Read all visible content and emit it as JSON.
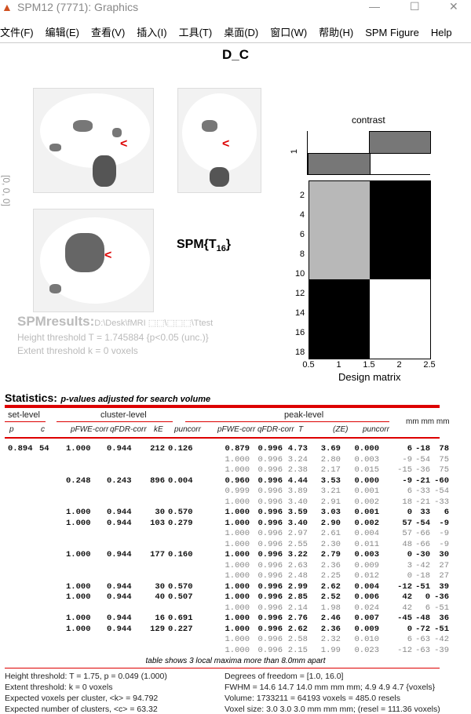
{
  "window": {
    "title": "SPM12 (7771): Graphics",
    "min": "—",
    "max": "☐",
    "close": "✕"
  },
  "menu": [
    "文件(F)",
    "编辑(E)",
    "查看(V)",
    "插入(I)",
    "工具(T)",
    "桌面(D)",
    "窗口(W)",
    "帮助(H)",
    "SPM Figure",
    "Help"
  ],
  "figure": {
    "title": "D_C",
    "coords": "[0, 0, 0]",
    "stat": "SPM{T",
    "stat_df": "16",
    "stat_end": "}",
    "results_label": "SPMresults:",
    "results_path": "D:\\Desk\\fMRI ⬚⬚\\⬚⬚⬚\\Ttest",
    "height_threshold": "Height threshold T = 1.745884  {p<0.05 (unc.)}",
    "extent_threshold": "Extent threshold k = 0 voxels"
  },
  "contrast": {
    "title": "contrast",
    "ytick": "1",
    "weights": [
      -1,
      1
    ]
  },
  "design": {
    "xlabel": "Design matrix",
    "xticks": [
      "0.5",
      "1",
      "1.5",
      "2",
      "2.5"
    ],
    "yticks": [
      "2",
      "4",
      "6",
      "8",
      "10",
      "12",
      "14",
      "16",
      "18"
    ],
    "colors": [
      [
        "#b8b8b8",
        "#000"
      ],
      [
        "#000",
        "#fff"
      ]
    ]
  },
  "stats": {
    "title": "Statistics:",
    "subtitle": "p-values adjusted for search volume",
    "groups": [
      "set-level",
      "cluster-level",
      "peak-level"
    ],
    "mm": "mm mm mm",
    "cols": [
      "p",
      "c",
      "pFWE-corr",
      "qFDR-corr",
      "kE",
      "puncorr",
      "pFWE-corr",
      "qFDR-corr",
      "T",
      "(ZE)",
      "puncorr"
    ],
    "rows": [
      [
        "0.894",
        "54",
        "1.000",
        "0.944",
        "212",
        "0.126",
        "0.879",
        "0.996",
        "4.73",
        "3.69",
        "0.000",
        "6",
        "-18",
        "78"
      ],
      [
        "",
        "",
        "",
        "",
        "",
        "",
        "1.000",
        "0.996",
        "3.24",
        "2.80",
        "0.003",
        "-9",
        "-54",
        "75"
      ],
      [
        "",
        "",
        "",
        "",
        "",
        "",
        "1.000",
        "0.996",
        "2.38",
        "2.17",
        "0.015",
        "-15",
        "-36",
        "75"
      ],
      [
        "",
        "",
        "0.248",
        "0.243",
        "896",
        "0.004",
        "0.960",
        "0.996",
        "4.44",
        "3.53",
        "0.000",
        "-9",
        "-21",
        "-60"
      ],
      [
        "",
        "",
        "",
        "",
        "",
        "",
        "0.999",
        "0.996",
        "3.89",
        "3.21",
        "0.001",
        "6",
        "-33",
        "-54"
      ],
      [
        "",
        "",
        "",
        "",
        "",
        "",
        "1.000",
        "0.996",
        "3.40",
        "2.91",
        "0.002",
        "18",
        "-21",
        "-33"
      ],
      [
        "",
        "",
        "1.000",
        "0.944",
        "30",
        "0.570",
        "1.000",
        "0.996",
        "3.59",
        "3.03",
        "0.001",
        "0",
        "33",
        "6"
      ],
      [
        "",
        "",
        "1.000",
        "0.944",
        "103",
        "0.279",
        "1.000",
        "0.996",
        "3.40",
        "2.90",
        "0.002",
        "57",
        "-54",
        "-9"
      ],
      [
        "",
        "",
        "",
        "",
        "",
        "",
        "1.000",
        "0.996",
        "2.97",
        "2.61",
        "0.004",
        "57",
        "-66",
        "-9"
      ],
      [
        "",
        "",
        "",
        "",
        "",
        "",
        "1.000",
        "0.996",
        "2.55",
        "2.30",
        "0.011",
        "48",
        "-66",
        "-9"
      ],
      [
        "",
        "",
        "1.000",
        "0.944",
        "177",
        "0.160",
        "1.000",
        "0.996",
        "3.22",
        "2.79",
        "0.003",
        "0",
        "-30",
        "30"
      ],
      [
        "",
        "",
        "",
        "",
        "",
        "",
        "1.000",
        "0.996",
        "2.63",
        "2.36",
        "0.009",
        "3",
        "-42",
        "27"
      ],
      [
        "",
        "",
        "",
        "",
        "",
        "",
        "1.000",
        "0.996",
        "2.48",
        "2.25",
        "0.012",
        "0",
        "-18",
        "27"
      ],
      [
        "",
        "",
        "1.000",
        "0.944",
        "30",
        "0.570",
        "1.000",
        "0.996",
        "2.99",
        "2.62",
        "0.004",
        "-12",
        "-51",
        "39"
      ],
      [
        "",
        "",
        "1.000",
        "0.944",
        "40",
        "0.507",
        "1.000",
        "0.996",
        "2.85",
        "2.52",
        "0.006",
        "42",
        "0",
        "-36"
      ],
      [
        "",
        "",
        "",
        "",
        "",
        "",
        "1.000",
        "0.996",
        "2.14",
        "1.98",
        "0.024",
        "42",
        "6",
        "-51"
      ],
      [
        "",
        "",
        "1.000",
        "0.944",
        "16",
        "0.691",
        "1.000",
        "0.996",
        "2.76",
        "2.46",
        "0.007",
        "-45",
        "-48",
        "36"
      ],
      [
        "",
        "",
        "1.000",
        "0.944",
        "129",
        "0.227",
        "1.000",
        "0.996",
        "2.62",
        "2.36",
        "0.009",
        "0",
        "-72",
        "-51"
      ],
      [
        "",
        "",
        "",
        "",
        "",
        "",
        "1.000",
        "0.996",
        "2.58",
        "2.32",
        "0.010",
        "6",
        "-63",
        "-42"
      ],
      [
        "",
        "",
        "",
        "",
        "",
        "",
        "1.000",
        "0.996",
        "2.15",
        "1.99",
        "0.023",
        "-12",
        "-63",
        "-39"
      ]
    ],
    "note": "table shows 3 local maxima more than 8.0mm apart",
    "footer_left": [
      "Height threshold: T = 1.75, p = 0.049 (1.000)",
      "Extent threshold: k = 0 voxels",
      "Expected voxels per cluster, <k> = 94.792",
      "Expected number of clusters, <c> = 63.32"
    ],
    "footer_right": [
      "Degrees of freedom = [1.0, 16.0]",
      "FWHM = 14.6 14.7 14.0 mm mm mm; 4.9 4.9 4.7 {voxels}",
      "Volume: 1733211 = 64193 voxels = 485.0 resels",
      "Voxel size: 3.0 3.0 3.0 mm mm mm; (resel = 111.36 voxels)"
    ]
  }
}
